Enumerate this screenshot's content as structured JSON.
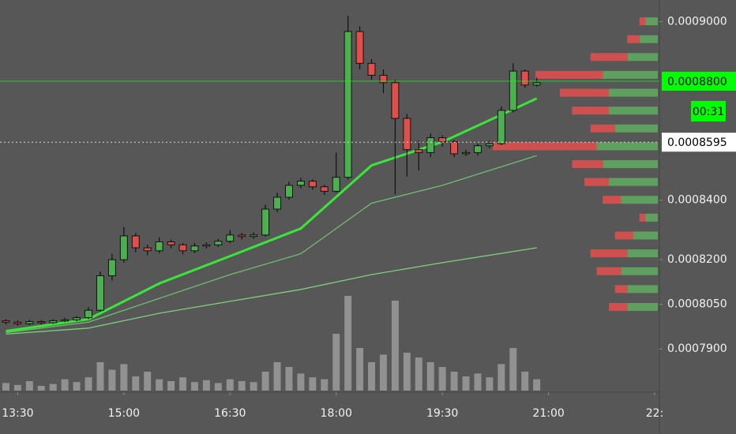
{
  "chart_data": {
    "type": "candlestick",
    "up_color": "#4caf50",
    "down_color": "#e0504a",
    "volume_color": "rgba(255,255,255,0.35)",
    "xlim": [
      "13:15",
      "22:34"
    ],
    "xticks": [
      "13:30",
      "15:00",
      "16:30",
      "18:00",
      "19:30",
      "21:00",
      {
        "value": "22:30",
        "label": "22:"
      }
    ],
    "ylim": [
      0.000776,
      0.0009073
    ],
    "yticks": [
      {
        "value": 0.0009,
        "label": "0.0009000"
      },
      {
        "value": 0.00084,
        "label": "0.0008400"
      },
      {
        "value": 0.00082,
        "label": "0.0008200"
      },
      {
        "value": 0.000805,
        "label": "0.0008050"
      },
      {
        "value": 0.00079,
        "label": "0.0007900"
      }
    ],
    "price_lines": [
      {
        "value": 0.00088,
        "label": "0.0008800",
        "color": "#00ff00",
        "style": "solid"
      },
      {
        "value": 0.0008595,
        "label": "0.0008595",
        "color": "#ffffff",
        "style": "dotted"
      }
    ],
    "countdown": "00:31",
    "candles": {
      "x": [
        "13:20",
        "13:30",
        "13:40",
        "13:50",
        "14:00",
        "14:10",
        "14:20",
        "14:30",
        "14:40",
        "14:50",
        "15:00",
        "15:10",
        "15:20",
        "15:30",
        "15:40",
        "15:50",
        "16:00",
        "16:10",
        "16:20",
        "16:30",
        "16:40",
        "16:50",
        "17:00",
        "17:10",
        "17:20",
        "17:30",
        "17:40",
        "17:50",
        "18:00",
        "18:10",
        "18:20",
        "18:30",
        "18:40",
        "18:50",
        "19:00",
        "19:10",
        "19:20",
        "19:30",
        "19:40",
        "19:50",
        "20:00",
        "20:10",
        "20:20",
        "20:30",
        "20:40",
        "20:50"
      ],
      "open": [
        0.0007995,
        0.000799,
        0.0007985,
        0.0007992,
        0.0007988,
        0.0007995,
        0.0007998,
        0.0008005,
        0.000803,
        0.0008146,
        0.00082,
        0.000828,
        0.000824,
        0.000823,
        0.000826,
        0.000825,
        0.000823,
        0.0008246,
        0.000825,
        0.0008262,
        0.0008283,
        0.0008278,
        0.0008283,
        0.000837,
        0.000841,
        0.000845,
        0.0008464,
        0.0008445,
        0.000843,
        0.0008477,
        0.0008967,
        0.000886,
        0.000882,
        0.0008795,
        0.0008675,
        0.000857,
        0.000856,
        0.000861,
        0.0008596,
        0.0008556,
        0.000856,
        0.0008583,
        0.000859,
        0.0008702,
        0.0008834,
        0.0008787
      ],
      "high": [
        0.0008,
        0.0007996,
        0.0007998,
        0.0007997,
        0.0008,
        0.0008004,
        0.000801,
        0.000804,
        0.000816,
        0.000822,
        0.000831,
        0.000829,
        0.000825,
        0.0008275,
        0.0008268,
        0.0008256,
        0.0008256,
        0.0008258,
        0.000827,
        0.00083,
        0.000829,
        0.0008292,
        0.0008385,
        0.0008425,
        0.0008462,
        0.0008475,
        0.000847,
        0.0008452,
        0.000856,
        0.000902,
        0.0008985,
        0.0008875,
        0.000884,
        0.0008805,
        0.000869,
        0.00086,
        0.0008625,
        0.0008618,
        0.0008602,
        0.000857,
        0.000859,
        0.00086,
        0.0008715,
        0.000886,
        0.000884,
        0.0008812
      ],
      "low": [
        0.0007982,
        0.0007978,
        0.000798,
        0.0007982,
        0.0007984,
        0.000799,
        0.0007993,
        0.0008,
        0.0008025,
        0.000813,
        0.000819,
        0.0008225,
        0.0008215,
        0.0008222,
        0.0008238,
        0.0008218,
        0.0008222,
        0.0008238,
        0.0008243,
        0.0008255,
        0.0008268,
        0.000827,
        0.0008278,
        0.000836,
        0.0008402,
        0.000844,
        0.0008435,
        0.0008418,
        0.0008425,
        0.000847,
        0.000884,
        0.0008805,
        0.000876,
        0.000842,
        0.000848,
        0.00085,
        0.0008545,
        0.000858,
        0.0008545,
        0.0008548,
        0.000855,
        0.0008575,
        0.0008585,
        0.0008695,
        0.0008778,
        0.0008782
      ],
      "close": [
        0.000799,
        0.0007985,
        0.0007992,
        0.0007988,
        0.0007995,
        0.0007998,
        0.0008005,
        0.000803,
        0.0008146,
        0.00082,
        0.000828,
        0.000824,
        0.000823,
        0.000826,
        0.000825,
        0.000823,
        0.0008246,
        0.000825,
        0.0008262,
        0.0008283,
        0.0008278,
        0.0008283,
        0.000837,
        0.000841,
        0.000845,
        0.0008464,
        0.0008445,
        0.000843,
        0.0008477,
        0.0008967,
        0.000886,
        0.000882,
        0.0008795,
        0.0008675,
        0.000857,
        0.000856,
        0.000861,
        0.0008596,
        0.0008556,
        0.000856,
        0.0008583,
        0.000859,
        0.0008702,
        0.0008834,
        0.0008787,
        0.0008795
      ],
      "volume": [
        8,
        6,
        10,
        5,
        7,
        12,
        9,
        14,
        30,
        22,
        28,
        15,
        20,
        12,
        10,
        14,
        9,
        11,
        8,
        12,
        10,
        9,
        20,
        30,
        25,
        18,
        14,
        12,
        60,
        100,
        45,
        30,
        38,
        95,
        40,
        35,
        30,
        25,
        20,
        15,
        18,
        14,
        28,
        45,
        20,
        12
      ]
    },
    "moving_averages": [
      {
        "color": "#7ecf7e",
        "x": [
          "13:20",
          "14:30",
          "15:30",
          "16:30",
          "17:30",
          "18:30",
          "19:30",
          "20:50"
        ],
        "values": [
          0.000795,
          0.000797,
          0.000802,
          0.000806,
          0.00081,
          0.000815,
          0.000819,
          0.000824
        ]
      },
      {
        "color": "#6fbf6f",
        "x": [
          "13:20",
          "14:30",
          "15:30",
          "16:30",
          "17:30",
          "18:30",
          "19:30",
          "20:50"
        ],
        "values": [
          0.0007955,
          0.000799,
          0.000807,
          0.000815,
          0.000822,
          0.000839,
          0.000845,
          0.000855
        ]
      },
      {
        "color": "#39e639",
        "x": [
          "13:20",
          "14:30",
          "15:30",
          "16:30",
          "17:30",
          "18:30",
          "19:30",
          "20:50"
        ],
        "values": [
          0.000796,
          0.0008,
          0.000812,
          0.0008212,
          0.0008305,
          0.0008517,
          0.0008596,
          0.0008742
        ]
      }
    ],
    "volume_profile": {
      "prices": [
        0.0009,
        0.000894,
        0.000888,
        0.000882,
        0.000876,
        0.00087,
        0.000864,
        0.000858,
        0.000852,
        0.000846,
        0.00084,
        0.000834,
        0.000828,
        0.000822,
        0.000816,
        0.00081,
        0.000804
      ],
      "up": [
        10,
        15,
        25,
        45,
        40,
        40,
        35,
        50,
        45,
        40,
        30,
        10,
        20,
        25,
        30,
        25,
        25
      ],
      "down": [
        5,
        10,
        30,
        55,
        40,
        30,
        20,
        85,
        25,
        20,
        15,
        5,
        15,
        30,
        20,
        10,
        15
      ],
      "up_color": "#5f9f5f",
      "down_color": "#d05050"
    }
  }
}
